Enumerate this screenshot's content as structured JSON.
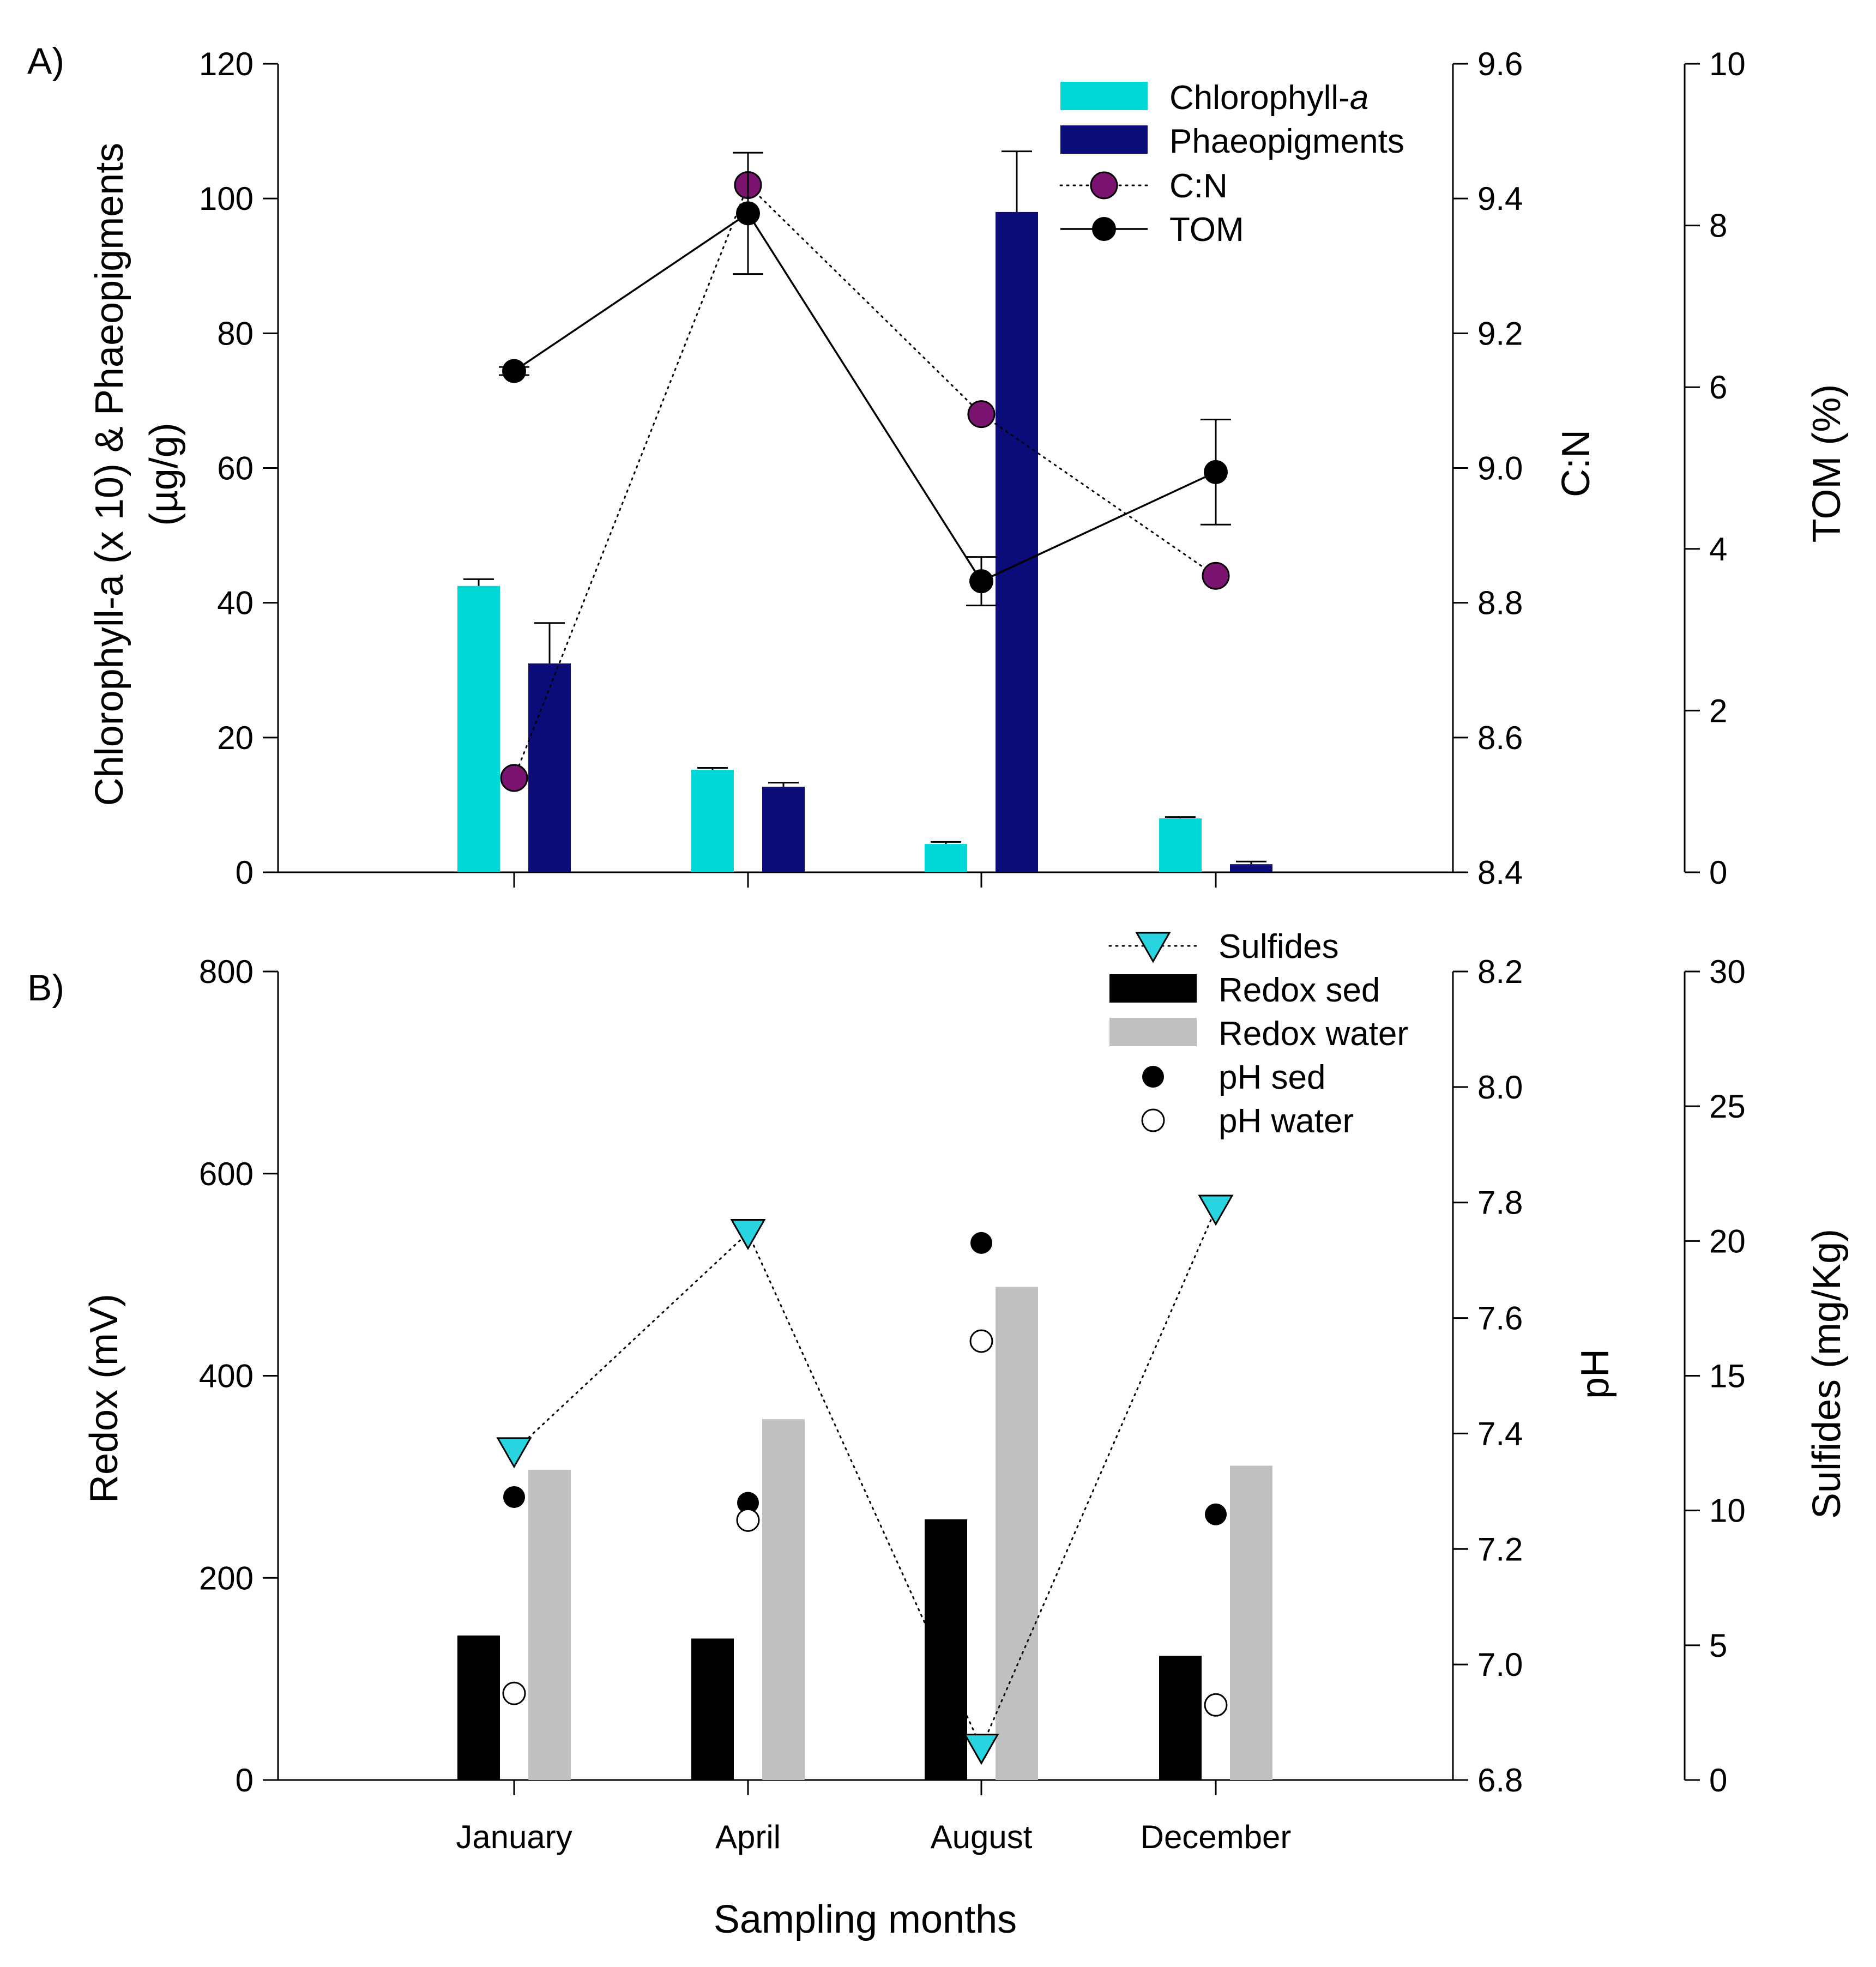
{
  "figure": {
    "xlabel": "Sampling months",
    "categories": [
      "January",
      "April",
      "August",
      "December"
    ]
  },
  "chart_data": [
    {
      "type": "bar",
      "panel": "A)",
      "categories": [
        "January",
        "April",
        "August",
        "December"
      ],
      "y_left": {
        "label_line1": "Chlorophyll-a (x 10) & Phaeopigments",
        "label_line2": "(µg/g)",
        "range": [
          0,
          120
        ],
        "ticks": [
          "0",
          "20",
          "40",
          "60",
          "80",
          "100",
          "120"
        ]
      },
      "y_right1": {
        "label": "C:N",
        "range": [
          8.4,
          9.6
        ],
        "ticks": [
          "8.4",
          "8.6",
          "8.8",
          "9.0",
          "9.2",
          "9.4",
          "9.6"
        ]
      },
      "y_right2": {
        "label": "TOM (%)",
        "range": [
          0,
          10
        ],
        "ticks": [
          "0",
          "2",
          "4",
          "6",
          "8",
          "10"
        ]
      },
      "series": [
        {
          "name": "Chlorophyll-a",
          "name_prefix": "Chlorophyll-",
          "name_italic": "a",
          "kind": "bar",
          "axis": "left",
          "color": "#00d8d8",
          "values": [
            42.5,
            15.2,
            4.2,
            8.0
          ],
          "errors": [
            1.0,
            0.3,
            0.3,
            0.2
          ]
        },
        {
          "name": "Phaeopigments",
          "kind": "bar",
          "axis": "left",
          "color": "#0b0b7a",
          "values": [
            31.0,
            12.7,
            98.0,
            1.2
          ],
          "errors": [
            6.0,
            0.6,
            9.0,
            0.4
          ]
        },
        {
          "name": "C:N",
          "kind": "line-dotted",
          "axis": "right1",
          "color": "#7a1470",
          "values": [
            8.54,
            9.42,
            9.08,
            8.84
          ]
        },
        {
          "name": "TOM",
          "kind": "line-solid",
          "axis": "right2",
          "color": "#000000",
          "values": [
            6.2,
            8.15,
            3.6,
            4.95
          ],
          "errors": [
            0.05,
            0.75,
            0.3,
            0.65
          ]
        }
      ]
    },
    {
      "type": "bar",
      "panel": "B)",
      "categories": [
        "January",
        "April",
        "August",
        "December"
      ],
      "y_left": {
        "label": "Redox (mV)",
        "range": [
          0,
          800
        ],
        "ticks": [
          "0",
          "200",
          "400",
          "600",
          "800"
        ]
      },
      "y_right1": {
        "label": "pH",
        "range": [
          6.8,
          8.2
        ],
        "ticks": [
          "6.8",
          "7.0",
          "7.2",
          "7.4",
          "7.6",
          "7.8",
          "8.0",
          "8.2"
        ]
      },
      "y_right2": {
        "label": "Sulfides (mg/Kg)",
        "range": [
          0,
          30
        ],
        "ticks": [
          "0",
          "5",
          "10",
          "15",
          "20",
          "25",
          "30"
        ]
      },
      "series": [
        {
          "name": "Sulfides",
          "kind": "line-dotted-triangle",
          "axis": "right2",
          "color": "#28d4e0",
          "values": [
            12.2,
            20.3,
            1.2,
            21.2
          ]
        },
        {
          "name": "Redox sed",
          "kind": "bar",
          "axis": "left",
          "color": "#000000",
          "values": [
            143,
            140,
            258,
            123
          ]
        },
        {
          "name": "Redox water",
          "kind": "bar",
          "axis": "left",
          "color": "#c0c0c0",
          "values": [
            307,
            357,
            488,
            311
          ]
        },
        {
          "name": "pH sed",
          "kind": "point-filled",
          "axis": "right1",
          "color": "#000000",
          "values": [
            7.29,
            7.28,
            7.73,
            7.26
          ]
        },
        {
          "name": "pH water",
          "kind": "point-open",
          "axis": "right1",
          "color": "#ffffff",
          "values": [
            6.95,
            7.25,
            7.56,
            6.93
          ]
        }
      ]
    }
  ]
}
